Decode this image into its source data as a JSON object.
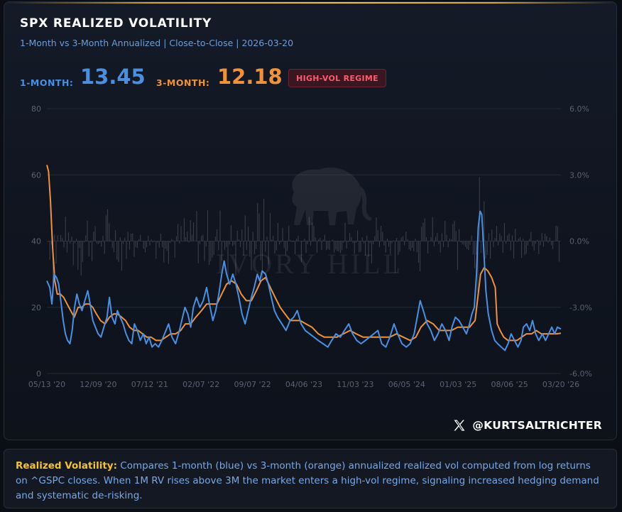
{
  "header": {
    "title": "SPX REALIZED VOLATILITY",
    "subtitle": "1-Month vs 3-Month Annualized | Close-to-Close | 2026-03-20"
  },
  "stats": {
    "one_month_label": "1-MONTH:",
    "one_month_value": "13.45",
    "three_month_label": "3-MONTH:",
    "three_month_value": "12.18",
    "regime_badge": "HIGH-VOL REGIME"
  },
  "watermark": {
    "text": "IVORY HILL",
    "icon": "elephant-icon"
  },
  "social": {
    "icon": "x-logo-icon",
    "handle": "@KURTSALTRICHTER"
  },
  "footer": {
    "lead": "Realized Volatility:",
    "text": " Compares 1-month (blue) vs 3-month (orange) annualized realized vol computed from log returns on ^GSPC closes. When 1M RV rises above 3M the market enters a high-vol regime, signaling increased hedging demand and systematic de-risking."
  },
  "colors": {
    "one_month": "#4a90e2",
    "three_month": "#f0923a",
    "returns": "#8a8f99",
    "regime": "#ff5a6e",
    "accent": "#f4c430"
  },
  "chart_data": {
    "type": "line",
    "x_tick_labels": [
      "05/13 '20",
      "12/09 '20",
      "07/12 '21",
      "02/07 '22",
      "09/07 '22",
      "04/06 '23",
      "11/03 '23",
      "06/05 '24",
      "01/03 '25",
      "08/06 '25",
      "03/20 '26"
    ],
    "y_left": {
      "ylim": [
        0,
        80
      ],
      "ticks": [
        0,
        20,
        40,
        60,
        80
      ]
    },
    "y_right": {
      "ylim": [
        -6.0,
        6.0
      ],
      "ticks": [
        "-6.0%",
        "-3.0%",
        "0.0%",
        "3.0%",
        "6.0%"
      ]
    },
    "grid": true,
    "x_range": [
      "2020-05-13",
      "2026-03-20"
    ],
    "series": [
      {
        "key": "one_month",
        "values": [
          [
            "2020-05-13",
            28
          ],
          [
            "2020-05-25",
            26
          ],
          [
            "2020-06-03",
            21
          ],
          [
            "2020-06-12",
            30
          ],
          [
            "2020-06-22",
            29
          ],
          [
            "2020-07-01",
            27
          ],
          [
            "2020-07-10",
            22
          ],
          [
            "2020-07-20",
            16
          ],
          [
            "2020-07-29",
            12
          ],
          [
            "2020-08-07",
            10
          ],
          [
            "2020-08-17",
            9
          ],
          [
            "2020-08-26",
            13
          ],
          [
            "2020-09-05",
            20
          ],
          [
            "2020-09-15",
            24
          ],
          [
            "2020-09-25",
            21
          ],
          [
            "2020-10-06",
            19
          ],
          [
            "2020-10-18",
            22
          ],
          [
            "2020-10-30",
            25
          ],
          [
            "2020-11-09",
            21
          ],
          [
            "2020-11-20",
            16
          ],
          [
            "2020-12-01",
            14
          ],
          [
            "2020-12-12",
            12
          ],
          [
            "2020-12-24",
            11
          ],
          [
            "2021-01-05",
            14
          ],
          [
            "2021-01-18",
            17
          ],
          [
            "2021-01-28",
            23
          ],
          [
            "2021-02-08",
            17
          ],
          [
            "2021-02-20",
            15
          ],
          [
            "2021-03-02",
            19
          ],
          [
            "2021-03-14",
            17
          ],
          [
            "2021-03-26",
            15
          ],
          [
            "2021-04-07",
            12
          ],
          [
            "2021-04-19",
            10
          ],
          [
            "2021-05-01",
            9
          ],
          [
            "2021-05-12",
            15
          ],
          [
            "2021-05-24",
            13
          ],
          [
            "2021-06-05",
            10
          ],
          [
            "2021-06-18",
            12
          ],
          [
            "2021-06-30",
            9
          ],
          [
            "2021-07-12",
            11
          ],
          [
            "2021-07-24",
            8
          ],
          [
            "2021-08-06",
            9
          ],
          [
            "2021-08-20",
            8
          ],
          [
            "2021-09-03",
            10
          ],
          [
            "2021-09-20",
            13
          ],
          [
            "2021-10-01",
            15
          ],
          [
            "2021-10-15",
            11
          ],
          [
            "2021-10-30",
            9
          ],
          [
            "2021-11-15",
            13
          ],
          [
            "2021-11-28",
            17
          ],
          [
            "2021-12-08",
            20
          ],
          [
            "2021-12-20",
            18
          ],
          [
            "2022-01-01",
            14
          ],
          [
            "2022-01-12",
            20
          ],
          [
            "2022-01-25",
            23
          ],
          [
            "2022-02-08",
            20
          ],
          [
            "2022-02-22",
            22
          ],
          [
            "2022-03-08",
            26
          ],
          [
            "2022-03-20",
            21
          ],
          [
            "2022-04-03",
            16
          ],
          [
            "2022-04-15",
            19
          ],
          [
            "2022-04-28",
            24
          ],
          [
            "2022-05-10",
            30
          ],
          [
            "2022-05-20",
            34
          ],
          [
            "2022-05-30",
            30
          ],
          [
            "2022-06-12",
            27
          ],
          [
            "2022-06-25",
            30
          ],
          [
            "2022-07-08",
            27
          ],
          [
            "2022-07-20",
            23
          ],
          [
            "2022-08-02",
            18
          ],
          [
            "2022-08-15",
            15
          ],
          [
            "2022-08-28",
            19
          ],
          [
            "2022-09-10",
            23
          ],
          [
            "2022-09-22",
            26
          ],
          [
            "2022-10-05",
            30
          ],
          [
            "2022-10-15",
            28
          ],
          [
            "2022-10-25",
            31
          ],
          [
            "2022-11-08",
            30
          ],
          [
            "2022-11-20",
            27
          ],
          [
            "2022-12-02",
            23
          ],
          [
            "2022-12-15",
            19
          ],
          [
            "2022-12-28",
            17
          ],
          [
            "2023-01-15",
            15
          ],
          [
            "2023-02-01",
            13
          ],
          [
            "2023-02-18",
            16
          ],
          [
            "2023-03-05",
            17
          ],
          [
            "2023-03-20",
            19
          ],
          [
            "2023-04-05",
            15
          ],
          [
            "2023-04-22",
            13
          ],
          [
            "2023-05-10",
            12
          ],
          [
            "2023-05-28",
            11
          ],
          [
            "2023-06-15",
            10
          ],
          [
            "2023-07-05",
            9
          ],
          [
            "2023-07-25",
            8
          ],
          [
            "2023-08-10",
            10
          ],
          [
            "2023-08-28",
            12
          ],
          [
            "2023-09-15",
            11
          ],
          [
            "2023-10-02",
            13
          ],
          [
            "2023-10-20",
            15
          ],
          [
            "2023-11-05",
            12
          ],
          [
            "2023-11-22",
            10
          ],
          [
            "2023-12-10",
            9
          ],
          [
            "2023-12-28",
            10
          ],
          [
            "2024-01-15",
            11
          ],
          [
            "2024-02-01",
            12
          ],
          [
            "2024-02-18",
            13
          ],
          [
            "2024-03-05",
            9
          ],
          [
            "2024-03-22",
            8
          ],
          [
            "2024-04-08",
            11
          ],
          [
            "2024-04-25",
            15
          ],
          [
            "2024-05-10",
            12
          ],
          [
            "2024-05-28",
            9
          ],
          [
            "2024-06-15",
            8
          ],
          [
            "2024-07-01",
            9
          ],
          [
            "2024-07-18",
            12
          ],
          [
            "2024-08-02",
            18
          ],
          [
            "2024-08-12",
            22
          ],
          [
            "2024-08-25",
            19
          ],
          [
            "2024-09-10",
            15
          ],
          [
            "2024-09-25",
            13
          ],
          [
            "2024-10-10",
            10
          ],
          [
            "2024-10-25",
            12
          ],
          [
            "2024-11-10",
            15
          ],
          [
            "2024-11-25",
            13
          ],
          [
            "2024-12-10",
            10
          ],
          [
            "2024-12-22",
            14
          ],
          [
            "2025-01-05",
            17
          ],
          [
            "2025-01-20",
            16
          ],
          [
            "2025-02-05",
            14
          ],
          [
            "2025-02-20",
            12
          ],
          [
            "2025-03-05",
            15
          ],
          [
            "2025-03-15",
            18
          ],
          [
            "2025-03-25",
            20
          ],
          [
            "2025-04-03",
            30
          ],
          [
            "2025-04-10",
            44
          ],
          [
            "2025-04-18",
            49
          ],
          [
            "2025-04-25",
            48
          ],
          [
            "2025-05-03",
            38
          ],
          [
            "2025-05-12",
            25
          ],
          [
            "2025-05-22",
            18
          ],
          [
            "2025-06-05",
            13
          ],
          [
            "2025-06-18",
            10
          ],
          [
            "2025-06-30",
            9
          ],
          [
            "2025-07-15",
            8
          ],
          [
            "2025-07-30",
            7
          ],
          [
            "2025-08-12",
            9
          ],
          [
            "2025-08-25",
            12
          ],
          [
            "2025-09-08",
            10
          ],
          [
            "2025-09-22",
            8
          ],
          [
            "2025-10-05",
            10
          ],
          [
            "2025-10-15",
            14
          ],
          [
            "2025-10-28",
            15
          ],
          [
            "2025-11-10",
            13
          ],
          [
            "2025-11-22",
            16
          ],
          [
            "2025-12-05",
            12
          ],
          [
            "2025-12-18",
            10
          ],
          [
            "2026-01-02",
            12
          ],
          [
            "2026-01-15",
            10
          ],
          [
            "2026-01-28",
            12
          ],
          [
            "2026-02-10",
            14
          ],
          [
            "2026-02-22",
            12
          ],
          [
            "2026-03-05",
            14
          ],
          [
            "2026-03-20",
            13.45
          ]
        ]
      },
      {
        "key": "three_month",
        "values": [
          [
            "2020-05-13",
            63
          ],
          [
            "2020-05-20",
            61
          ],
          [
            "2020-05-28",
            52
          ],
          [
            "2020-06-06",
            38
          ],
          [
            "2020-06-15",
            28
          ],
          [
            "2020-06-25",
            24
          ],
          [
            "2020-07-08",
            24
          ],
          [
            "2020-07-22",
            23
          ],
          [
            "2020-08-05",
            21
          ],
          [
            "2020-08-20",
            19
          ],
          [
            "2020-09-04",
            17
          ],
          [
            "2020-09-20",
            20
          ],
          [
            "2020-10-05",
            20
          ],
          [
            "2020-10-20",
            21
          ],
          [
            "2020-11-05",
            21
          ],
          [
            "2020-11-20",
            20
          ],
          [
            "2020-12-05",
            18
          ],
          [
            "2020-12-22",
            16
          ],
          [
            "2021-01-10",
            15
          ],
          [
            "2021-01-28",
            17
          ],
          [
            "2021-02-15",
            18
          ],
          [
            "2021-03-02",
            18
          ],
          [
            "2021-03-20",
            17
          ],
          [
            "2021-04-05",
            16
          ],
          [
            "2021-04-22",
            14
          ],
          [
            "2021-05-10",
            13
          ],
          [
            "2021-05-28",
            13
          ],
          [
            "2021-06-15",
            12
          ],
          [
            "2021-07-02",
            11
          ],
          [
            "2021-07-20",
            11
          ],
          [
            "2021-08-10",
            10
          ],
          [
            "2021-08-30",
            10
          ],
          [
            "2021-09-20",
            11
          ],
          [
            "2021-10-10",
            12
          ],
          [
            "2021-10-30",
            12
          ],
          [
            "2021-11-20",
            13
          ],
          [
            "2021-12-10",
            15
          ],
          [
            "2022-01-01",
            15
          ],
          [
            "2022-01-22",
            17
          ],
          [
            "2022-02-15",
            19
          ],
          [
            "2022-03-08",
            21
          ],
          [
            "2022-03-28",
            21
          ],
          [
            "2022-04-20",
            21
          ],
          [
            "2022-05-10",
            24
          ],
          [
            "2022-05-30",
            27
          ],
          [
            "2022-06-20",
            28
          ],
          [
            "2022-07-10",
            27
          ],
          [
            "2022-07-30",
            24
          ],
          [
            "2022-08-20",
            22
          ],
          [
            "2022-09-10",
            22
          ],
          [
            "2022-10-01",
            25
          ],
          [
            "2022-10-20",
            28
          ],
          [
            "2022-11-08",
            29
          ],
          [
            "2022-11-28",
            26
          ],
          [
            "2022-12-18",
            23
          ],
          [
            "2023-01-08",
            20
          ],
          [
            "2023-01-28",
            18
          ],
          [
            "2023-02-18",
            16
          ],
          [
            "2023-03-10",
            16
          ],
          [
            "2023-04-01",
            16
          ],
          [
            "2023-04-25",
            15
          ],
          [
            "2023-05-20",
            14
          ],
          [
            "2023-06-15",
            12
          ],
          [
            "2023-07-10",
            11
          ],
          [
            "2023-08-05",
            11
          ],
          [
            "2023-09-01",
            11
          ],
          [
            "2023-09-28",
            12
          ],
          [
            "2023-10-25",
            13
          ],
          [
            "2023-11-20",
            12
          ],
          [
            "2023-12-18",
            11
          ],
          [
            "2024-01-15",
            11
          ],
          [
            "2024-02-12",
            11
          ],
          [
            "2024-03-10",
            11
          ],
          [
            "2024-04-08",
            11
          ],
          [
            "2024-05-05",
            12
          ],
          [
            "2024-06-02",
            11
          ],
          [
            "2024-07-01",
            10
          ],
          [
            "2024-07-25",
            11
          ],
          [
            "2024-08-15",
            14
          ],
          [
            "2024-09-10",
            16
          ],
          [
            "2024-10-05",
            15
          ],
          [
            "2024-10-30",
            13
          ],
          [
            "2024-11-25",
            13
          ],
          [
            "2024-12-20",
            13
          ],
          [
            "2025-01-15",
            14
          ],
          [
            "2025-02-10",
            14
          ],
          [
            "2025-03-05",
            14
          ],
          [
            "2025-03-28",
            16
          ],
          [
            "2025-04-10",
            24
          ],
          [
            "2025-04-20",
            30
          ],
          [
            "2025-05-05",
            32
          ],
          [
            "2025-05-20",
            31
          ],
          [
            "2025-06-05",
            29
          ],
          [
            "2025-06-20",
            26
          ],
          [
            "2025-06-28",
            15
          ],
          [
            "2025-07-10",
            13
          ],
          [
            "2025-07-25",
            11
          ],
          [
            "2025-08-12",
            10
          ],
          [
            "2025-08-30",
            10
          ],
          [
            "2025-09-18",
            10
          ],
          [
            "2025-10-08",
            11
          ],
          [
            "2025-10-28",
            12
          ],
          [
            "2025-11-18",
            12
          ],
          [
            "2025-12-08",
            13
          ],
          [
            "2025-12-28",
            12
          ],
          [
            "2026-01-18",
            12
          ],
          [
            "2026-02-08",
            12
          ],
          [
            "2026-02-28",
            12
          ],
          [
            "2026-03-20",
            12.18
          ]
        ]
      }
    ]
  }
}
